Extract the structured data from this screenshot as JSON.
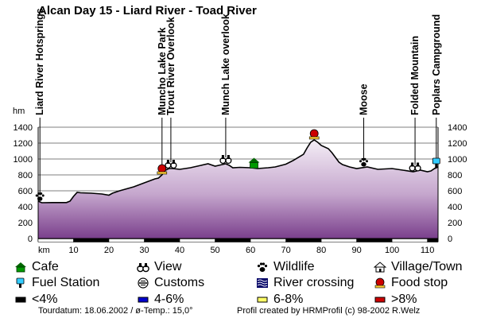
{
  "chart_data": {
    "type": "area",
    "title": "Alcan Day 15 - Liard River - Toad River",
    "ylabel": "hm",
    "xlabel": "km",
    "ylim": [
      0,
      1400
    ],
    "xlim": [
      0,
      113
    ],
    "yticks": [
      0,
      200,
      400,
      600,
      800,
      1000,
      1200,
      1400
    ],
    "xticks": [
      10,
      20,
      30,
      40,
      50,
      60,
      70,
      80,
      90,
      100,
      110
    ],
    "grid": true,
    "profile": [
      [
        0,
        470
      ],
      [
        1,
        450
      ],
      [
        4,
        452
      ],
      [
        8,
        452
      ],
      [
        9,
        470
      ],
      [
        10,
        530
      ],
      [
        11,
        580
      ],
      [
        12,
        575
      ],
      [
        15,
        570
      ],
      [
        18,
        560
      ],
      [
        20,
        545
      ],
      [
        21,
        570
      ],
      [
        23,
        600
      ],
      [
        27,
        650
      ],
      [
        30,
        700
      ],
      [
        33,
        750
      ],
      [
        34,
        760
      ],
      [
        35,
        800
      ],
      [
        36,
        860
      ],
      [
        37,
        880
      ],
      [
        38,
        880
      ],
      [
        40,
        870
      ],
      [
        43,
        890
      ],
      [
        46,
        920
      ],
      [
        48,
        940
      ],
      [
        50,
        910
      ],
      [
        52,
        930
      ],
      [
        53,
        940
      ],
      [
        54,
        920
      ],
      [
        55,
        890
      ],
      [
        57,
        895
      ],
      [
        60,
        890
      ],
      [
        62,
        880
      ],
      [
        65,
        890
      ],
      [
        67,
        900
      ],
      [
        70,
        935
      ],
      [
        72,
        980
      ],
      [
        75,
        1060
      ],
      [
        76,
        1140
      ],
      [
        77,
        1210
      ],
      [
        78,
        1240
      ],
      [
        79,
        1210
      ],
      [
        80,
        1170
      ],
      [
        82,
        1130
      ],
      [
        83,
        1080
      ],
      [
        85,
        960
      ],
      [
        86,
        930
      ],
      [
        88,
        900
      ],
      [
        90,
        880
      ],
      [
        93,
        900
      ],
      [
        96,
        870
      ],
      [
        100,
        880
      ],
      [
        103,
        860
      ],
      [
        106,
        840
      ],
      [
        108,
        860
      ],
      [
        110,
        840
      ],
      [
        111,
        850
      ],
      [
        112,
        880
      ],
      [
        113,
        900
      ]
    ],
    "poi_labels": [
      {
        "km": 0.5,
        "label": "Liard River Hotsprings"
      },
      {
        "km": 35,
        "label": "Muncho Lake Park"
      },
      {
        "km": 37.5,
        "label": "Trout River Overlook"
      },
      {
        "km": 53,
        "label": "Munch Lake overlook"
      },
      {
        "km": 92,
        "label": "Moose"
      },
      {
        "km": 106.5,
        "label": "Folded Mountain"
      },
      {
        "km": 112.5,
        "label": "Poplars Campground"
      }
    ],
    "icons": [
      {
        "km": 0.5,
        "type": "wildlife"
      },
      {
        "km": 35,
        "type": "food"
      },
      {
        "km": 37.5,
        "type": "view"
      },
      {
        "km": 53,
        "type": "view"
      },
      {
        "km": 61,
        "type": "cafe"
      },
      {
        "km": 78,
        "type": "food"
      },
      {
        "km": 92,
        "type": "wildlife"
      },
      {
        "km": 106.5,
        "type": "view"
      },
      {
        "km": 112.5,
        "type": "fuel"
      }
    ]
  },
  "legend": [
    {
      "label": "Cafe",
      "icon": "cafe-icon"
    },
    {
      "label": "View",
      "icon": "view-icon"
    },
    {
      "label": "Wildlife",
      "icon": "wildlife-icon"
    },
    {
      "label": "Village/Town",
      "icon": "village-icon"
    },
    {
      "label": "Fuel Station",
      "icon": "fuel-icon"
    },
    {
      "label": "Customs",
      "icon": "customs-icon"
    },
    {
      "label": "River crossing",
      "icon": "river-icon"
    },
    {
      "label": "Food stop",
      "icon": "food-icon"
    },
    {
      "label": "<4%",
      "icon": "grade-black",
      "color": "#000000"
    },
    {
      "label": "4-6%",
      "icon": "grade-blue",
      "color": "#0000cc"
    },
    {
      "label": "6-8%",
      "icon": "grade-yellow",
      "color": "#ffff66"
    },
    {
      "label": ">8%",
      "icon": "grade-red",
      "color": "#cc0000"
    }
  ],
  "footer": {
    "left": "Tourdatum: 18.06.2002 / ø-Temp.: 15,0°",
    "right": "Profil created by HRMProfil (c) 98-2002 R.Welz"
  },
  "colors": {
    "fill_top": "#f0e8f4",
    "fill_bottom": "#7a3f8c",
    "grid": "#666666"
  }
}
